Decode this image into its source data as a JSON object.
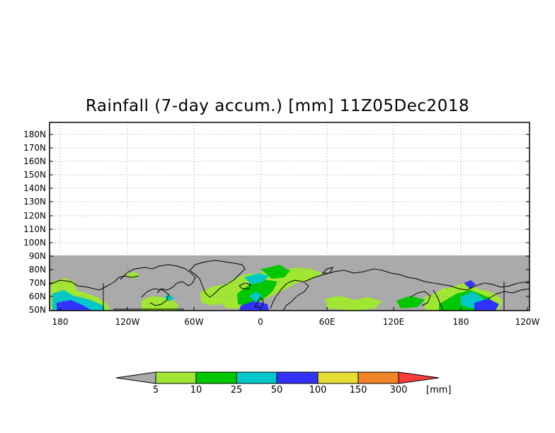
{
  "title": "Rainfall (7-day accum.) [mm] 11Z05Dec2018",
  "map": {
    "lat_labels": [
      "180N",
      "170N",
      "160N",
      "150N",
      "140N",
      "130N",
      "120N",
      "110N",
      "100N",
      "90N",
      "80N",
      "70N",
      "60N",
      "50N"
    ],
    "lon_labels": [
      "180",
      "120W",
      "60W",
      "0",
      "60E",
      "120E",
      "180",
      "120W"
    ],
    "lon_range": [
      -180,
      240
    ],
    "lat_range": [
      50,
      187
    ],
    "data_lat_max": 90,
    "gridlines": "dotted",
    "colors": {
      "no_data": "#aaaaaa",
      "land_outline": "#000000",
      "frame": "#000000",
      "grid": "#999999"
    }
  },
  "colorbar": {
    "levels": [
      "5",
      "10",
      "25",
      "50",
      "100",
      "150",
      "300"
    ],
    "unit": "[mm]",
    "colors": [
      "#aaaaaa",
      "#a0e632",
      "#00c800",
      "#00c8c8",
      "#3232fa",
      "#e6dc32",
      "#f08228",
      "#fa3c3c"
    ]
  }
}
